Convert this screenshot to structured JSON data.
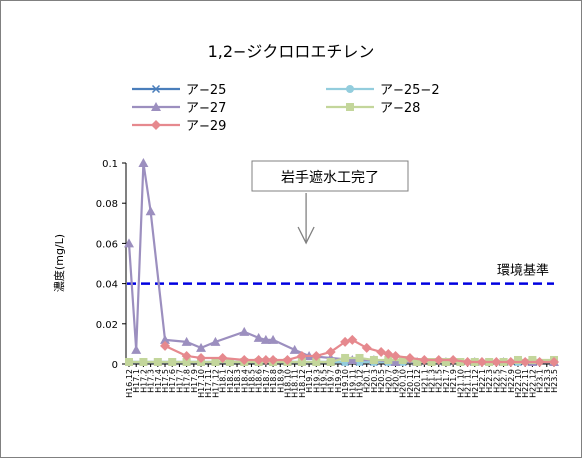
{
  "chart_data": {
    "type": "line",
    "title": "1,2−ジクロロエチレン",
    "xlabel": "",
    "ylabel": "濃度(mg/L)",
    "ylim": [
      0,
      0.1
    ],
    "yticks": [
      "0",
      "0.02",
      "0.04",
      "0.06",
      "0.08",
      "0.1"
    ],
    "ytick_values": [
      0,
      0.02,
      0.04,
      0.06,
      0.08,
      0.1
    ],
    "grid": false,
    "legend_position": "top",
    "categories": [
      "H16.12",
      "H17.1",
      "H17.2",
      "H17.3",
      "H17.4",
      "H17.5",
      "H17.6",
      "H17.7",
      "H17.8",
      "H17.9",
      "H17.10",
      "H17.11",
      "H17.12",
      "H18.1",
      "H18.2",
      "H18.3",
      "H18.4",
      "H18.5",
      "H18.6",
      "H18.7",
      "H18.8",
      "H18.9",
      "H18.10",
      "H18.11",
      "H18.12",
      "H19.1",
      "H19.3",
      "H19.5",
      "H19.7",
      "H19.9",
      "H19.10",
      "H19.11",
      "H19.12",
      "H20.1",
      "H20.3",
      "H20.5",
      "H20.7",
      "H20.9",
      "H20.10",
      "H20.11",
      "H20.12",
      "H21.1",
      "H21.3",
      "H21.5",
      "H21.7",
      "H21.9",
      "H21.10",
      "H21.11",
      "H21.12",
      "H22.1",
      "H22.3",
      "H22.5",
      "H22.7",
      "H22.9",
      "H22.10",
      "H22.11",
      "H22.12",
      "H23.1",
      "H23.3",
      "H23.5"
    ],
    "series": [
      {
        "name": "ア−25",
        "color": "#4a7ebb",
        "marker": "x",
        "points": [
          [
            0,
            0.001
          ],
          [
            2,
            0.001
          ],
          [
            4,
            0.001
          ],
          [
            6,
            0.001
          ],
          [
            8,
            0.001
          ],
          [
            10,
            0.001
          ],
          [
            12,
            0.001
          ],
          [
            14,
            0.001
          ],
          [
            16,
            0.001
          ],
          [
            18,
            0.001
          ],
          [
            20,
            0.001
          ],
          [
            22,
            0.001
          ],
          [
            24,
            0.001
          ],
          [
            26,
            0.001
          ],
          [
            28,
            0.001
          ],
          [
            30,
            0.001
          ],
          [
            32,
            0.001
          ],
          [
            34,
            0.001
          ],
          [
            36,
            0.001
          ],
          [
            38,
            0.001
          ],
          [
            40,
            0.001
          ],
          [
            42,
            0.001
          ],
          [
            44,
            0.001
          ],
          [
            46,
            0.001
          ],
          [
            48,
            0.001
          ],
          [
            50,
            0.001
          ],
          [
            52,
            0.001
          ],
          [
            54,
            0.001
          ],
          [
            56,
            0.001
          ],
          [
            59,
            0.001
          ]
        ]
      },
      {
        "name": "ア−25−2",
        "color": "#93cddd",
        "marker": "circle",
        "points": [
          [
            0,
            0.001
          ],
          [
            2,
            0.001
          ],
          [
            4,
            0.001
          ],
          [
            6,
            0.001
          ],
          [
            8,
            0.001
          ],
          [
            10,
            0.001
          ],
          [
            12,
            0.001
          ],
          [
            14,
            0.001
          ],
          [
            16,
            0.001
          ],
          [
            18,
            0.001
          ],
          [
            20,
            0.001
          ],
          [
            22,
            0.001
          ],
          [
            24,
            0.001
          ],
          [
            26,
            0.001
          ],
          [
            28,
            0.001
          ],
          [
            30,
            0.001
          ],
          [
            32,
            0.001
          ],
          [
            34,
            0.001
          ],
          [
            36,
            0.001
          ],
          [
            38,
            0.001
          ],
          [
            40,
            0.001
          ],
          [
            42,
            0.001
          ],
          [
            44,
            0.001
          ],
          [
            46,
            0.001
          ],
          [
            48,
            0.001
          ],
          [
            50,
            0.001
          ],
          [
            52,
            0.001
          ],
          [
            54,
            0.001
          ],
          [
            56,
            0.001
          ],
          [
            59,
            0.001
          ]
        ]
      },
      {
        "name": "ア−27",
        "color": "#9c8fbf",
        "marker": "triangle",
        "points": [
          [
            0,
            0.06
          ],
          [
            1,
            0.007
          ],
          [
            2,
            0.1
          ],
          [
            3,
            0.076
          ],
          [
            5,
            0.012
          ],
          [
            8,
            0.011
          ],
          [
            10,
            0.008
          ],
          [
            12,
            0.011
          ],
          [
            16,
            0.016
          ],
          [
            18,
            0.013
          ],
          [
            19,
            0.012
          ],
          [
            20,
            0.012
          ],
          [
            23,
            0.007
          ],
          [
            25,
            0.004
          ],
          [
            28,
            0.003
          ],
          [
            31,
            0.002
          ],
          [
            34,
            0.002
          ],
          [
            37,
            0.001
          ],
          [
            40,
            0.001
          ],
          [
            44,
            0.001
          ],
          [
            48,
            0.001
          ],
          [
            52,
            0.001
          ],
          [
            56,
            0.001
          ],
          [
            59,
            0.001
          ]
        ]
      },
      {
        "name": "ア−28",
        "color": "#c3d69b",
        "marker": "square",
        "points": [
          [
            0,
            0.001
          ],
          [
            2,
            0.001
          ],
          [
            4,
            0.001
          ],
          [
            6,
            0.001
          ],
          [
            8,
            0.001
          ],
          [
            10,
            0.001
          ],
          [
            12,
            0.001
          ],
          [
            14,
            0.001
          ],
          [
            16,
            0.001
          ],
          [
            18,
            0.001
          ],
          [
            20,
            0.001
          ],
          [
            22,
            0.001
          ],
          [
            24,
            0.001
          ],
          [
            26,
            0.001
          ],
          [
            28,
            0.001
          ],
          [
            30,
            0.003
          ],
          [
            32,
            0.003
          ],
          [
            34,
            0.002
          ],
          [
            36,
            0.002
          ],
          [
            38,
            0.002
          ],
          [
            40,
            0.001
          ],
          [
            42,
            0.001
          ],
          [
            44,
            0.001
          ],
          [
            46,
            0.001
          ],
          [
            48,
            0.001
          ],
          [
            50,
            0.001
          ],
          [
            52,
            0.001
          ],
          [
            54,
            0.002
          ],
          [
            56,
            0.002
          ],
          [
            59,
            0.002
          ]
        ]
      },
      {
        "name": "ア−29",
        "color": "#e6898e",
        "marker": "diamond",
        "points": [
          [
            5,
            0.009
          ],
          [
            8,
            0.004
          ],
          [
            10,
            0.003
          ],
          [
            13,
            0.003
          ],
          [
            16,
            0.002
          ],
          [
            18,
            0.002
          ],
          [
            19,
            0.002
          ],
          [
            20,
            0.002
          ],
          [
            22,
            0.002
          ],
          [
            24,
            0.004
          ],
          [
            26,
            0.004
          ],
          [
            28,
            0.006
          ],
          [
            30,
            0.011
          ],
          [
            31,
            0.012
          ],
          [
            33,
            0.008
          ],
          [
            35,
            0.006
          ],
          [
            36,
            0.005
          ],
          [
            37,
            0.004
          ],
          [
            39,
            0.003
          ],
          [
            41,
            0.002
          ],
          [
            43,
            0.002
          ],
          [
            45,
            0.002
          ],
          [
            47,
            0.001
          ],
          [
            49,
            0.001
          ],
          [
            51,
            0.001
          ],
          [
            53,
            0.001
          ],
          [
            55,
            0.001
          ],
          [
            57,
            0.001
          ],
          [
            59,
            0.001
          ]
        ]
      }
    ],
    "reference_line": {
      "label": "環境基準",
      "value": 0.04,
      "color": "#0000e0"
    },
    "annotation": {
      "text": "岩手遮水工完了",
      "category_index": 25
    }
  }
}
